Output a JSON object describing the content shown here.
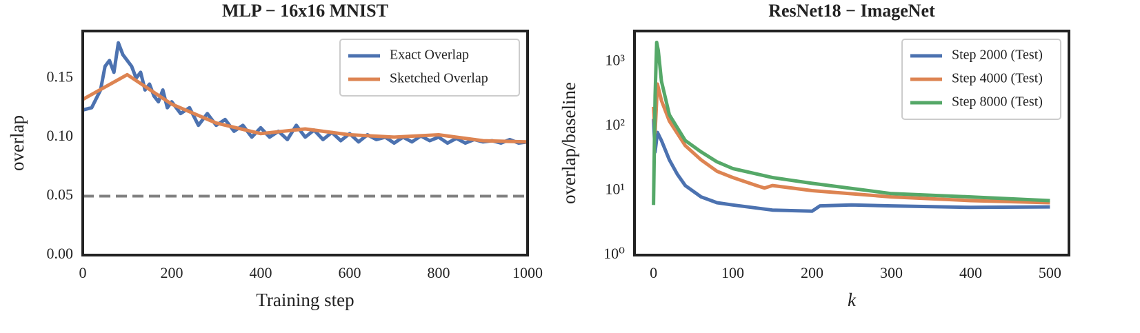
{
  "chart_data": [
    {
      "type": "line",
      "title": "MLP − 16x16 MNIST",
      "xlabel": "Training step",
      "ylabel": "overlap",
      "xlim": [
        0,
        1000
      ],
      "ylim": [
        0,
        0.19
      ],
      "xticks": [
        0,
        200,
        400,
        600,
        800,
        1000
      ],
      "yticks": [
        {
          "value": 0,
          "label": "0.00"
        },
        0.05,
        {
          "value": 0.1,
          "label": "0.10"
        },
        0.15
      ],
      "log_y": false,
      "grid": false,
      "legend": "upper right",
      "hlines": [
        {
          "value": 0.05,
          "color": "#808080",
          "style": "dashed"
        }
      ],
      "series": [
        {
          "name": "Exact Overlap",
          "color": "#4c72b0",
          "x": [
            0,
            20,
            40,
            50,
            60,
            70,
            80,
            90,
            100,
            110,
            120,
            130,
            140,
            150,
            160,
            170,
            180,
            190,
            200,
            220,
            240,
            260,
            280,
            300,
            320,
            340,
            360,
            380,
            400,
            420,
            440,
            460,
            480,
            500,
            520,
            540,
            560,
            580,
            600,
            620,
            640,
            660,
            680,
            700,
            720,
            740,
            760,
            780,
            800,
            820,
            840,
            860,
            880,
            900,
            920,
            940,
            960,
            980,
            1000
          ],
          "values": [
            0.123,
            0.125,
            0.14,
            0.16,
            0.165,
            0.155,
            0.18,
            0.17,
            0.165,
            0.16,
            0.15,
            0.155,
            0.14,
            0.145,
            0.135,
            0.13,
            0.14,
            0.125,
            0.13,
            0.12,
            0.125,
            0.11,
            0.12,
            0.11,
            0.115,
            0.105,
            0.11,
            0.1,
            0.108,
            0.1,
            0.105,
            0.098,
            0.11,
            0.1,
            0.106,
            0.098,
            0.104,
            0.097,
            0.103,
            0.096,
            0.102,
            0.098,
            0.1,
            0.095,
            0.1,
            0.096,
            0.101,
            0.097,
            0.1,
            0.095,
            0.099,
            0.095,
            0.098,
            0.096,
            0.097,
            0.095,
            0.098,
            0.095,
            0.096
          ]
        },
        {
          "name": "Sketched Overlap",
          "color": "#dd8452",
          "x": [
            0,
            100,
            200,
            300,
            400,
            500,
            600,
            700,
            800,
            900,
            1000
          ],
          "values": [
            0.132,
            0.153,
            0.128,
            0.112,
            0.103,
            0.107,
            0.102,
            0.1,
            0.102,
            0.097,
            0.096
          ]
        }
      ]
    },
    {
      "type": "line",
      "title": "ResNet18 − ImageNet",
      "xlabel": "k",
      "ylabel": "overlap/baseline",
      "xlim": [
        -24,
        524
      ],
      "ylim": [
        1,
        3000
      ],
      "xticks": [
        0,
        100,
        200,
        300,
        400,
        500
      ],
      "yticks": [
        {
          "value": 1,
          "label": "10⁰"
        },
        {
          "value": 10,
          "label": "10¹"
        },
        {
          "value": 100,
          "label": "10²"
        },
        {
          "value": 1000,
          "label": "10³"
        }
      ],
      "log_y": true,
      "grid": false,
      "legend": "upper right",
      "series": [
        {
          "name": "Step 2000 (Test)",
          "color": "#4c72b0",
          "x": [
            0,
            2,
            5,
            10,
            20,
            30,
            40,
            60,
            80,
            100,
            150,
            200,
            210,
            250,
            300,
            400,
            500
          ],
          "values": [
            130,
            40,
            80,
            60,
            30,
            18,
            12,
            8,
            6.5,
            6,
            5,
            4.8,
            5.8,
            6,
            5.8,
            5.5,
            5.6
          ]
        },
        {
          "name": "Step 4000 (Test)",
          "color": "#dd8452",
          "x": [
            0,
            2,
            5,
            10,
            20,
            40,
            60,
            80,
            100,
            130,
            140,
            150,
            200,
            300,
            400,
            500
          ],
          "values": [
            200,
            80,
            450,
            250,
            120,
            50,
            30,
            20,
            16,
            12,
            11,
            12,
            10,
            8,
            7,
            6.5
          ]
        },
        {
          "name": "Step 8000 (Test)",
          "color": "#55a868",
          "x": [
            0,
            2,
            4,
            6,
            10,
            20,
            40,
            60,
            80,
            100,
            150,
            200,
            300,
            400,
            500
          ],
          "values": [
            6,
            300,
            2000,
            1500,
            500,
            150,
            60,
            40,
            28,
            22,
            16,
            13,
            9,
            8,
            7
          ]
        }
      ]
    }
  ]
}
